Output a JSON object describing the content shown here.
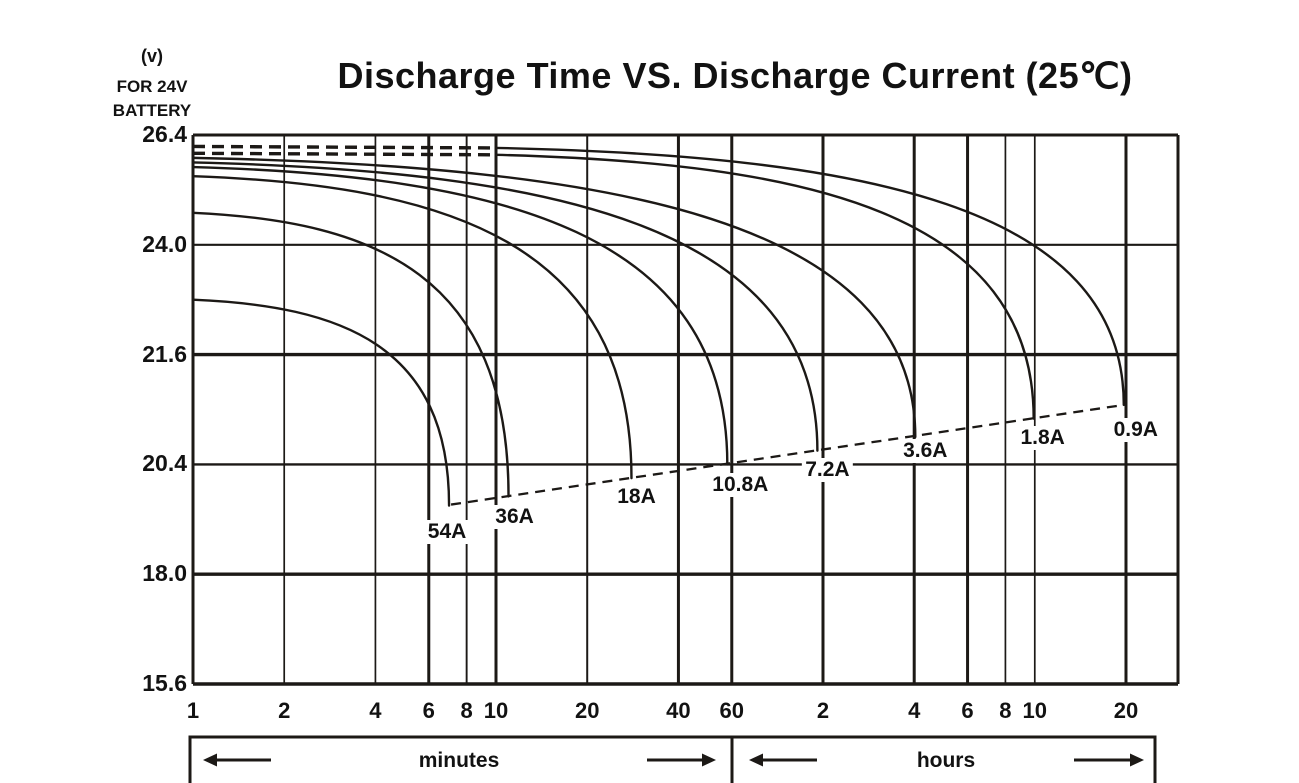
{
  "page": {
    "background": "#ffffff"
  },
  "header": {
    "title": "Discharge Time VS. Discharge Current (25℃)",
    "y_axis_unit": "(v)",
    "y_axis_line1": "FOR 24V",
    "y_axis_line2": "BATTERY"
  },
  "chart_data": {
    "type": "line",
    "title": "Discharge Time VS. Discharge Current (25℃)",
    "x_scale": "logarithmic-time",
    "x_axis": {
      "minute_ticks": [
        1,
        2,
        4,
        6,
        8,
        10,
        20,
        40,
        60
      ],
      "hour_ticks": [
        2,
        4,
        6,
        8,
        10,
        20
      ],
      "minute_band_label": "minutes",
      "hour_band_label": "hours"
    },
    "y_axis": {
      "unit": "(v)",
      "subtitle": "FOR 24V BATTERY",
      "ticks": [
        "26.4",
        "24.0",
        "21.6",
        "20.4",
        "18.0",
        "15.6"
      ],
      "tick_values": [
        26.4,
        24.0,
        21.6,
        20.4,
        18.0,
        15.6
      ]
    },
    "grid": true,
    "colors": {
      "line": "#1c1916",
      "grid": "#1c1916",
      "text": "#121212",
      "background": "#ffffff"
    },
    "series": [
      {
        "label": "54A",
        "start_voltage": 22.8,
        "end_time_min": 7,
        "end_voltage": 19.5,
        "dashed_until_min": null,
        "label_dx": -2,
        "label_dy": 26
      },
      {
        "label": "36A",
        "start_voltage": 24.7,
        "end_time_min": 11,
        "end_voltage": 19.7,
        "dashed_until_min": null,
        "label_dx": 6,
        "label_dy": 21
      },
      {
        "label": "18A",
        "start_voltage": 25.5,
        "end_time_min": 28,
        "end_voltage": 20.1,
        "dashed_until_min": null,
        "label_dx": 5,
        "label_dy": 19
      },
      {
        "label": "10.8A",
        "start_voltage": 25.7,
        "end_time_min": 58,
        "end_voltage": 20.4,
        "dashed_until_min": null,
        "label_dx": 13,
        "label_dy": 21
      },
      {
        "label": "7.2A",
        "start_voltage": 25.8,
        "end_time_min": 115,
        "end_voltage": 20.55,
        "dashed_until_min": null,
        "label_dx": 10,
        "label_dy": 19
      },
      {
        "label": "3.6A",
        "start_voltage": 25.9,
        "end_time_min": 242,
        "end_voltage": 20.7,
        "dashed_until_min": null,
        "label_dx": 10,
        "label_dy": 14
      },
      {
        "label": "1.8A",
        "start_voltage": 26.0,
        "end_time_min": 595,
        "end_voltage": 20.9,
        "dashed_until_min": 10,
        "label_dx": 9,
        "label_dy": 19
      },
      {
        "label": "0.9A",
        "start_voltage": 26.15,
        "end_time_min": 1180,
        "end_voltage": 21.05,
        "dashed_until_min": 10,
        "label_dx": 12,
        "label_dy": 25
      }
    ],
    "cutoff_line": {
      "style": "dashed",
      "from_series": "54A",
      "to_series": "0.9A"
    }
  }
}
